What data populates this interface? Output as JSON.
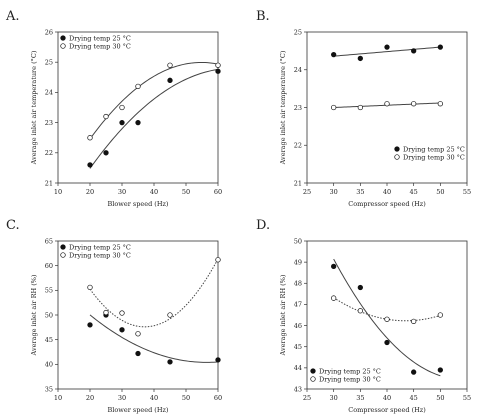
{
  "chart_data": [
    {
      "panel": "A.",
      "type": "scatter",
      "xlabel": "Blower speed (Hz)",
      "ylabel": "Average inlet air temperature (°C)",
      "xlim": [
        10,
        60
      ],
      "ylim": [
        21,
        26
      ],
      "xticks": [
        10,
        20,
        30,
        40,
        50,
        60
      ],
      "yticks": [
        21,
        22,
        23,
        24,
        25,
        26
      ],
      "legend_position": "top-left",
      "series": [
        {
          "name": "Drying temp 25 °C",
          "marker": "filled",
          "fit": "quadratic",
          "x": [
            20,
            25,
            30,
            35,
            45,
            60
          ],
          "y": [
            21.6,
            22.0,
            23.0,
            23.0,
            24.4,
            24.7
          ]
        },
        {
          "name": "Drying temp 30 °C",
          "marker": "open",
          "fit": "quadratic",
          "x": [
            20,
            25,
            30,
            35,
            45,
            60
          ],
          "y": [
            22.5,
            23.2,
            23.5,
            24.2,
            24.9,
            24.9
          ]
        }
      ]
    },
    {
      "panel": "B.",
      "type": "scatter",
      "xlabel": "Compressor speed (Hz)",
      "ylabel": "Average inlet air temperature (°C)",
      "xlim": [
        25,
        55
      ],
      "ylim": [
        21,
        25
      ],
      "xticks": [
        25,
        30,
        35,
        40,
        45,
        50,
        55
      ],
      "yticks": [
        21,
        22,
        23,
        24,
        25
      ],
      "legend_position": "bottom-right",
      "series": [
        {
          "name": "Drying temp 25 °C",
          "marker": "filled",
          "fit": "linear",
          "x": [
            30,
            35,
            40,
            45,
            50
          ],
          "y": [
            24.4,
            24.3,
            24.6,
            24.5,
            24.6
          ]
        },
        {
          "name": "Drying temp 30 °C",
          "marker": "open",
          "fit": "linear",
          "x": [
            30,
            35,
            40,
            45,
            50
          ],
          "y": [
            23.0,
            23.0,
            23.1,
            23.1,
            23.1
          ]
        }
      ]
    },
    {
      "panel": "C.",
      "type": "scatter",
      "xlabel": "Blower speed (Hz)",
      "ylabel": "Average inlet air RH (%)",
      "xlim": [
        10,
        60
      ],
      "ylim": [
        35,
        65
      ],
      "xticks": [
        10,
        20,
        30,
        40,
        50,
        60
      ],
      "yticks": [
        35,
        40,
        45,
        50,
        55,
        60,
        65
      ],
      "legend_position": "top-left",
      "series": [
        {
          "name": "Drying temp 25 °C",
          "marker": "filled",
          "fit": "quadratic",
          "x": [
            20,
            25,
            30,
            35,
            45,
            60
          ],
          "y": [
            48.0,
            50.0,
            47.0,
            42.2,
            40.5,
            40.9
          ]
        },
        {
          "name": "Drying temp 30 °C",
          "marker": "open",
          "fit": "quadratic",
          "x": [
            20,
            25,
            30,
            35,
            45,
            60
          ],
          "y": [
            55.6,
            50.5,
            50.4,
            46.2,
            50.0,
            61.2
          ]
        }
      ]
    },
    {
      "panel": "D.",
      "type": "scatter",
      "xlabel": "Compressor speed (Hz)",
      "ylabel": "Average inlet air RH (%)",
      "xlim": [
        25,
        55
      ],
      "ylim": [
        43,
        50
      ],
      "xticks": [
        25,
        30,
        35,
        40,
        45,
        50,
        55
      ],
      "yticks": [
        43,
        44,
        45,
        46,
        47,
        48,
        49,
        50
      ],
      "legend_position": "bottom-left",
      "series": [
        {
          "name": "Drying temp 25 °C",
          "marker": "filled",
          "fit": "quadratic",
          "x": [
            30,
            35,
            40,
            45,
            50
          ],
          "y": [
            48.8,
            47.8,
            45.2,
            43.8,
            43.9
          ]
        },
        {
          "name": "Drying temp 30 °C",
          "marker": "open",
          "fit": "quadratic",
          "x": [
            30,
            35,
            40,
            45,
            50
          ],
          "y": [
            47.3,
            46.7,
            46.3,
            46.2,
            46.5
          ]
        }
      ]
    }
  ]
}
